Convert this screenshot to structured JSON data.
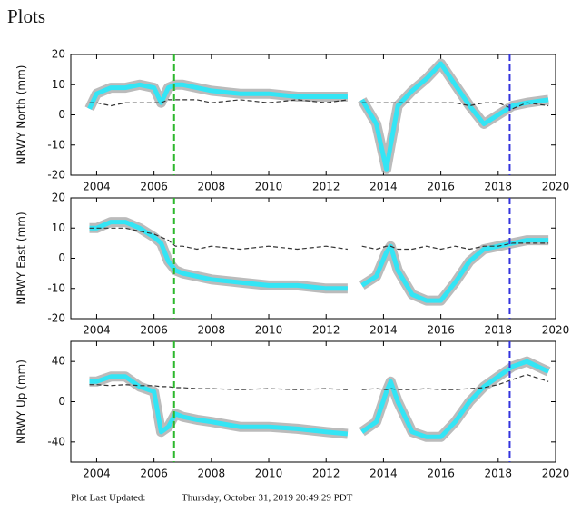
{
  "header": {
    "title": "Plots"
  },
  "footer": {
    "label": "Plot Last Updated:",
    "timestamp": "Thursday, October 31, 2019 20:49:29 PDT"
  },
  "chart_data": [
    {
      "type": "line",
      "ylabel": "NRWY North (mm)",
      "x": [
        2003.75,
        2004,
        2004.5,
        2005,
        2005.5,
        2006,
        2006.25,
        2006.5,
        2006.75,
        2007,
        2007.5,
        2008,
        2009,
        2010,
        2011,
        2012,
        2012.75,
        2013,
        2013.25,
        2013.75,
        2014.1,
        2014.25,
        2014.5,
        2015,
        2015.5,
        2016,
        2016.5,
        2017,
        2017.5,
        2018,
        2018.5,
        2019,
        2019.75
      ],
      "series": [
        {
          "color": "#33e5f5",
          "values": [
            2,
            7,
            9,
            9,
            10,
            9,
            4,
            9,
            10,
            10,
            9,
            8,
            7,
            7,
            6,
            6,
            6,
            null,
            5,
            -3,
            -18,
            -10,
            3,
            8,
            12,
            17,
            10,
            3,
            -3,
            0,
            3,
            4,
            5
          ]
        },
        {
          "color": "#333333",
          "dashed": true,
          "values": [
            4,
            4,
            3,
            4,
            4,
            4,
            4,
            5,
            5,
            5,
            5,
            4,
            5,
            4,
            5,
            4,
            5,
            null,
            4,
            4,
            4,
            4,
            4,
            4,
            4,
            4,
            4,
            3,
            4,
            4,
            2,
            4,
            3
          ]
        }
      ],
      "vlines": [
        {
          "x": 2006.7,
          "color": "#2db82d"
        },
        {
          "x": 2018.4,
          "color": "#3333dd"
        }
      ],
      "xlim": [
        2003.1,
        2020
      ],
      "xticks": [
        2004,
        2006,
        2008,
        2010,
        2012,
        2014,
        2016,
        2018,
        2020
      ],
      "ylim": [
        -20,
        20
      ],
      "yticks": [
        -20,
        -10,
        0,
        10,
        20
      ]
    },
    {
      "type": "line",
      "ylabel": "NRWY East (mm)",
      "x": [
        2003.75,
        2004,
        2004.5,
        2005,
        2005.5,
        2006,
        2006.25,
        2006.5,
        2006.75,
        2007,
        2007.5,
        2008,
        2009,
        2010,
        2011,
        2012,
        2012.75,
        2013,
        2013.25,
        2013.75,
        2014.1,
        2014.25,
        2014.5,
        2015,
        2015.5,
        2016,
        2016.5,
        2017,
        2017.5,
        2018,
        2018.5,
        2019,
        2019.75
      ],
      "series": [
        {
          "color": "#33e5f5",
          "values": [
            10,
            10,
            12,
            12,
            10,
            7,
            5,
            -1,
            -4,
            -5,
            -6,
            -7,
            -8,
            -9,
            -9,
            -10,
            -10,
            null,
            -9,
            -6,
            2,
            4,
            -4,
            -12,
            -14,
            -14,
            -8,
            -1,
            3,
            4,
            5,
            6,
            6
          ]
        },
        {
          "color": "#333333",
          "dashed": true,
          "values": [
            10,
            10,
            10,
            10,
            9,
            8,
            7,
            6,
            4,
            4,
            3,
            4,
            3,
            4,
            3,
            4,
            3,
            null,
            4,
            3,
            4,
            4,
            3,
            3,
            4,
            3,
            4,
            3,
            4,
            4,
            5,
            5,
            5
          ]
        }
      ],
      "vlines": [
        {
          "x": 2006.7,
          "color": "#2db82d"
        },
        {
          "x": 2018.4,
          "color": "#3333dd"
        }
      ],
      "xlim": [
        2003.1,
        2020
      ],
      "xticks": [
        2004,
        2006,
        2008,
        2010,
        2012,
        2014,
        2016,
        2018,
        2020
      ],
      "ylim": [
        -20,
        20
      ],
      "yticks": [
        -20,
        -10,
        0,
        10,
        20
      ]
    },
    {
      "type": "line",
      "ylabel": "NRWY Up (mm)",
      "x": [
        2003.75,
        2004,
        2004.5,
        2005,
        2005.5,
        2006,
        2006.25,
        2006.5,
        2006.75,
        2007,
        2007.5,
        2008,
        2009,
        2010,
        2011,
        2012,
        2012.75,
        2013,
        2013.25,
        2013.75,
        2014.1,
        2014.25,
        2014.5,
        2015,
        2015.5,
        2016,
        2016.5,
        2017,
        2017.5,
        2018,
        2018.5,
        2019,
        2019.75
      ],
      "series": [
        {
          "color": "#33e5f5",
          "values": [
            20,
            20,
            25,
            25,
            15,
            10,
            -30,
            -25,
            -12,
            -15,
            -18,
            -20,
            -25,
            -25,
            -27,
            -30,
            -32,
            null,
            -30,
            -20,
            10,
            20,
            0,
            -30,
            -35,
            -35,
            -20,
            0,
            15,
            25,
            35,
            40,
            30
          ]
        },
        {
          "color": "#333333",
          "dashed": true,
          "values": [
            17,
            17,
            16,
            17,
            16,
            16,
            15,
            15,
            14,
            14,
            13,
            13,
            12,
            13,
            12,
            13,
            12,
            null,
            12,
            13,
            12,
            13,
            12,
            12,
            13,
            12,
            12,
            13,
            14,
            17,
            22,
            27,
            20
          ]
        }
      ],
      "vlines": [
        {
          "x": 2006.7,
          "color": "#2db82d"
        },
        {
          "x": 2018.4,
          "color": "#3333dd"
        }
      ],
      "xlim": [
        2003.1,
        2020
      ],
      "xticks": [
        2004,
        2006,
        2008,
        2010,
        2012,
        2014,
        2016,
        2018,
        2020
      ],
      "ylim": [
        -60,
        60
      ],
      "yticks": [
        -40,
        0,
        40
      ]
    }
  ]
}
